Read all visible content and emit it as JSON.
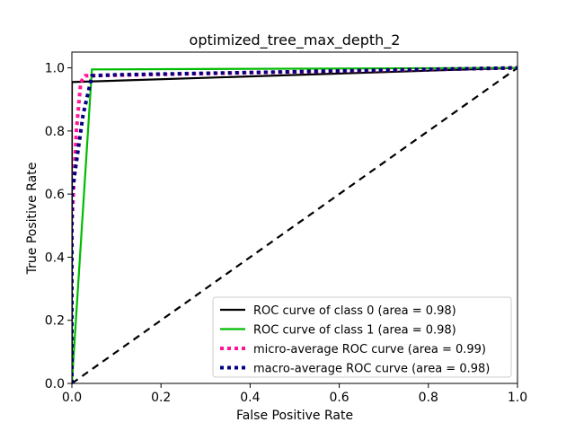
{
  "chart_data": {
    "type": "line",
    "title": "optimized_tree_max_depth_2",
    "xlabel": "False Positive Rate",
    "ylabel": "True Positive Rate",
    "xlim": [
      0.0,
      1.0
    ],
    "ylim": [
      0.0,
      1.05
    ],
    "xticks": [
      0.0,
      0.2,
      0.4,
      0.6,
      0.8,
      1.0
    ],
    "yticks": [
      0.0,
      0.2,
      0.4,
      0.6,
      0.8,
      1.0
    ],
    "xtick_labels": [
      "0.0",
      "0.2",
      "0.4",
      "0.6",
      "0.8",
      "1.0"
    ],
    "ytick_labels": [
      "0.0",
      "0.2",
      "0.4",
      "0.6",
      "0.8",
      "1.0"
    ],
    "grid": false,
    "legend_position": "lower-right",
    "series": [
      {
        "name": "ROC curve of class 0 (area = 0.98)",
        "color": "#000000",
        "style": "solid",
        "x": [
          0.0,
          0.0,
          1.0
        ],
        "y": [
          0.0,
          0.955,
          1.0
        ]
      },
      {
        "name": "ROC curve of class 1 (area = 0.98)",
        "color": "#00bb00",
        "style": "solid",
        "x": [
          0.0,
          0.045,
          1.0
        ],
        "y": [
          0.0,
          0.995,
          1.0
        ]
      },
      {
        "name": "micro-average ROC curve (area = 0.99)",
        "color": "#ff1493",
        "style": "dotted",
        "x": [
          0.0,
          0.0,
          0.01,
          0.02,
          0.03,
          1.0
        ],
        "y": [
          0.0,
          0.5,
          0.8,
          0.955,
          0.975,
          1.0
        ]
      },
      {
        "name": "macro-average ROC curve (area = 0.98)",
        "color": "#000080",
        "style": "dotted",
        "x": [
          0.0,
          0.0,
          0.01,
          0.025,
          0.045,
          0.1,
          1.0
        ],
        "y": [
          0.0,
          0.6,
          0.7,
          0.85,
          0.975,
          0.978,
          1.0
        ]
      }
    ],
    "reference_line": {
      "color": "#000000",
      "style": "dashed",
      "x": [
        0.0,
        1.0
      ],
      "y": [
        0.0,
        1.0
      ]
    }
  }
}
